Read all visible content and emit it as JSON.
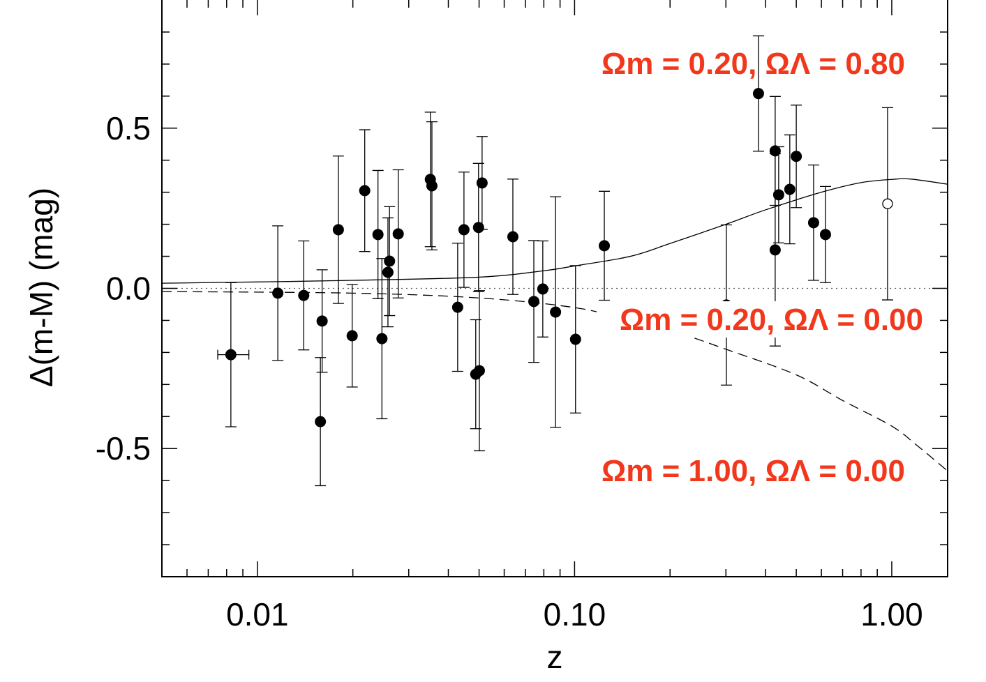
{
  "chart_data": {
    "type": "scatter",
    "title": "",
    "xlabel": "z",
    "ylabel": "Δ(m-M) (mag)",
    "xscale": "log",
    "xlim": [
      0.005,
      1.5
    ],
    "ylim": [
      -0.9,
      0.9
    ],
    "grid": false,
    "x_tick_labels": [
      {
        "value": 0.01,
        "label": "0.01"
      },
      {
        "value": 0.1,
        "label": "0.10"
      },
      {
        "value": 1.0,
        "label": "1.00"
      }
    ],
    "y_tick_labels": [
      {
        "value": 0.5,
        "label": "0.5"
      },
      {
        "value": 0.0,
        "label": "0.0"
      },
      {
        "value": -0.5,
        "label": "-0.5"
      }
    ],
    "colors": {
      "annotation": "#f2381c",
      "ink": "#000000"
    },
    "annotations": [
      {
        "text": "Ωm = 0.20, ΩΛ = 0.80",
        "curve": "solid"
      },
      {
        "text": "Ωm = 0.20, ΩΛ = 0.00",
        "curve": "dotted"
      },
      {
        "text": "Ωm = 1.00, ΩΛ = 0.00",
        "curve": "dashed"
      }
    ],
    "curves": [
      {
        "name": "Ωm = 0.20, ΩΛ = 0.80",
        "style": "solid",
        "x": [
          0.005,
          0.01,
          0.02,
          0.05,
          0.08,
          0.1,
          0.15,
          0.2,
          0.3,
          0.4,
          0.6,
          0.8,
          1.0,
          1.15,
          1.5
        ],
        "y": [
          0.016,
          0.02,
          0.025,
          0.035,
          0.055,
          0.07,
          0.1,
          0.14,
          0.2,
          0.245,
          0.3,
          0.33,
          0.34,
          0.341,
          0.325
        ]
      },
      {
        "name": "Ωm = 0.20, ΩΛ = 0.00",
        "style": "dotted",
        "x": [
          0.005,
          1.5
        ],
        "y": [
          0,
          0
        ]
      },
      {
        "name": "Ωm = 1.00, ΩΛ = 0.00",
        "style": "dashed",
        "x": [
          0.005,
          0.02,
          0.05,
          0.1,
          0.15,
          0.2,
          0.3,
          0.5,
          0.7,
          1.0,
          1.2,
          1.5
        ],
        "y": [
          -0.01,
          -0.015,
          -0.03,
          -0.06,
          -0.1,
          -0.13,
          -0.19,
          -0.27,
          -0.35,
          -0.43,
          -0.49,
          -0.57
        ]
      }
    ],
    "points": [
      {
        "z": 0.00825,
        "y": -0.207,
        "err": 0.225,
        "zerr": [
          0.0075,
          0.0094
        ]
      },
      {
        "z": 0.0116,
        "y": -0.015,
        "err": 0.21
      },
      {
        "z": 0.014,
        "y": -0.022,
        "err": 0.17
      },
      {
        "z": 0.016,
        "y": -0.102,
        "err": 0.16
      },
      {
        "z": 0.0158,
        "y": -0.416,
        "err": 0.2
      },
      {
        "z": 0.018,
        "y": 0.183,
        "err": 0.23
      },
      {
        "z": 0.0199,
        "y": -0.148,
        "err": 0.16
      },
      {
        "z": 0.0218,
        "y": 0.305,
        "err": 0.19
      },
      {
        "z": 0.024,
        "y": 0.168,
        "err": 0.2
      },
      {
        "z": 0.0247,
        "y": -0.157,
        "err": 0.25
      },
      {
        "z": 0.0258,
        "y": 0.05,
        "err": 0.17
      },
      {
        "z": 0.0261,
        "y": 0.085,
        "err": 0.17
      },
      {
        "z": 0.0278,
        "y": 0.17,
        "err": 0.2
      },
      {
        "z": 0.0351,
        "y": 0.34,
        "err": 0.21
      },
      {
        "z": 0.0355,
        "y": 0.32,
        "err": 0.2
      },
      {
        "z": 0.0428,
        "y": -0.059,
        "err": 0.2
      },
      {
        "z": 0.0448,
        "y": 0.183,
        "err": 0.18
      },
      {
        "z": 0.0498,
        "y": 0.19,
        "err": 0.2
      },
      {
        "z": 0.0511,
        "y": 0.329,
        "err": 0.145
      },
      {
        "z": 0.0488,
        "y": -0.268,
        "err": 0.17
      },
      {
        "z": 0.0501,
        "y": -0.257,
        "err": 0.25
      },
      {
        "z": 0.0639,
        "y": 0.161,
        "err": 0.18
      },
      {
        "z": 0.0744,
        "y": -0.041,
        "err": 0.19
      },
      {
        "z": 0.0794,
        "y": -0.002,
        "err": 0.15
      },
      {
        "z": 0.0871,
        "y": -0.074,
        "err": 0.36
      },
      {
        "z": 0.1007,
        "y": -0.159,
        "err": 0.23
      },
      {
        "z": 0.1241,
        "y": 0.133,
        "err": 0.17
      },
      {
        "z": 0.301,
        "y": -0.052,
        "err": 0.25
      },
      {
        "z": 0.38,
        "y": 0.608,
        "err": 0.18
      },
      {
        "z": 0.429,
        "y": 0.429,
        "err": 0.17
      },
      {
        "z": 0.44,
        "y": 0.292,
        "err": 0.15
      },
      {
        "z": 0.429,
        "y": 0.12,
        "err": 0.3
      },
      {
        "z": 0.477,
        "y": 0.309,
        "err": 0.17
      },
      {
        "z": 0.5,
        "y": 0.412,
        "err": 0.16
      },
      {
        "z": 0.567,
        "y": 0.205,
        "err": 0.18
      },
      {
        "z": 0.618,
        "y": 0.168,
        "err": 0.15
      },
      {
        "z": 0.97,
        "y": 0.264,
        "err": 0.3,
        "open": true
      }
    ]
  }
}
